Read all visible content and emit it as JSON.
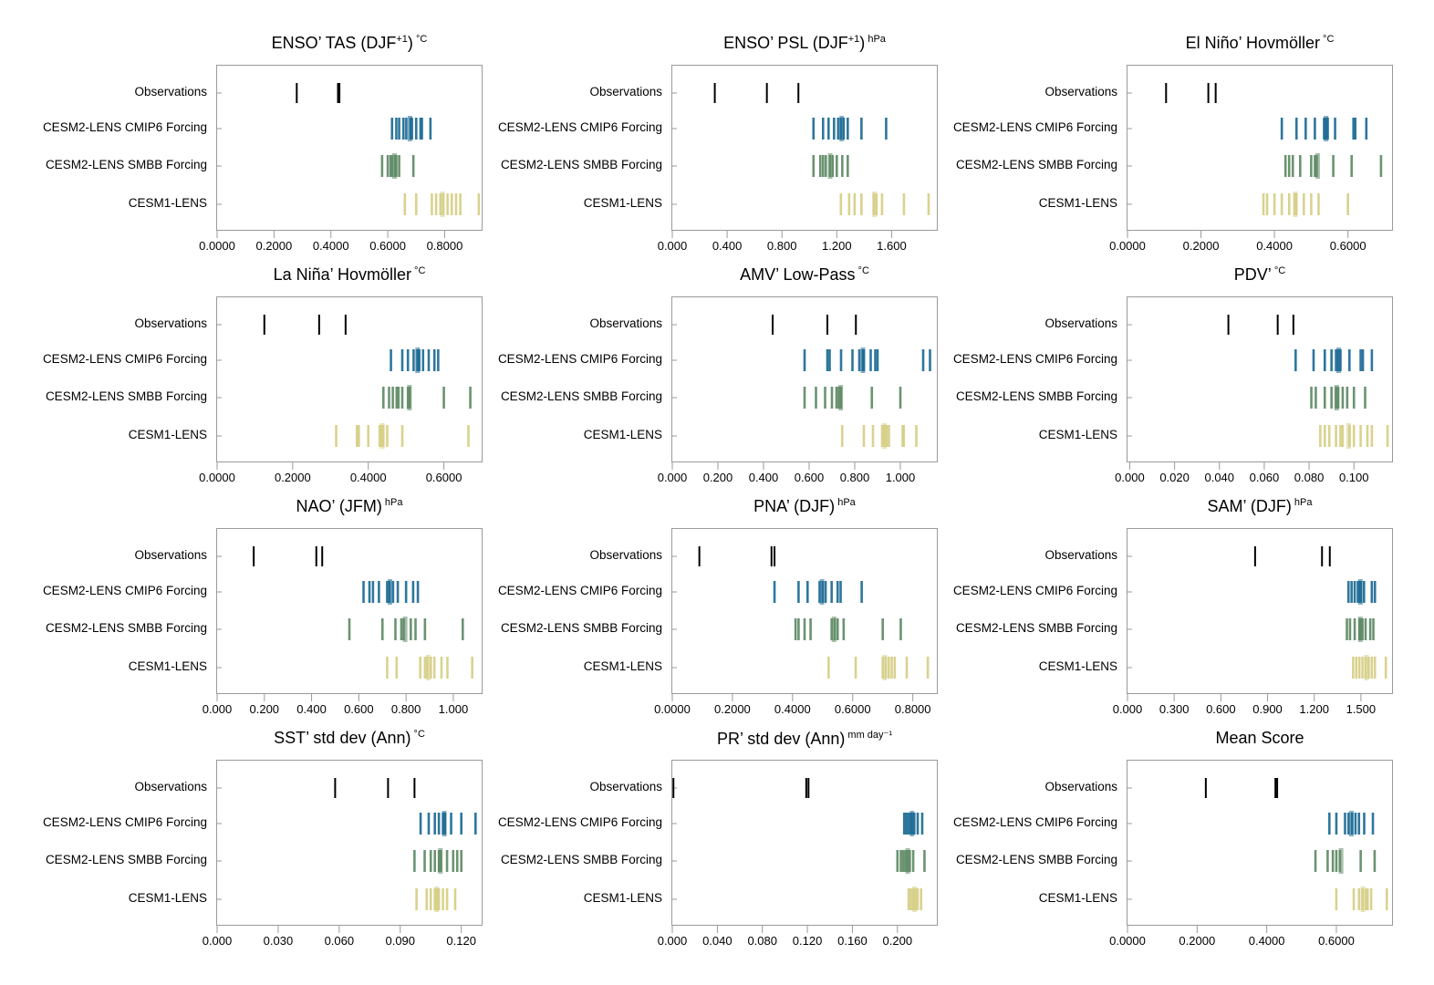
{
  "colors": {
    "Observations": "#000000",
    "CESM2-LENS CMIP6 Forcing": "#1d6b94",
    "CESM2-LENS SMBB Forcing": "#5f8a66",
    "CESM1-LENS": "#d6cf86"
  },
  "rows": [
    "Observations",
    "CESM2-LENS CMIP6 Forcing",
    "CESM2-LENS SMBB Forcing",
    "CESM1-LENS"
  ],
  "chart_data": [
    {
      "type": "scatter",
      "title": "ENSO’ TAS (DJF",
      "title_sup": "+1",
      "title_tail": ")",
      "unit": "°C",
      "xlim": [
        0,
        0.93
      ],
      "ticks": [
        "0.0000",
        "0.2000",
        "0.4000",
        "0.6000",
        "0.8000"
      ],
      "tick_values": [
        0,
        0.2,
        0.4,
        0.6,
        0.8
      ],
      "series": [
        {
          "name": "Observations",
          "values": [
            0.28,
            0.425,
            0.43
          ]
        },
        {
          "name": "CESM2-LENS CMIP6 Forcing",
          "values": [
            0.615,
            0.63,
            0.64,
            0.655,
            0.665,
            0.68,
            0.685,
            0.7,
            0.715,
            0.72,
            0.75
          ]
        },
        {
          "name": "CESM2-LENS SMBB Forcing",
          "values": [
            0.58,
            0.6,
            0.61,
            0.615,
            0.625,
            0.63,
            0.64,
            0.69
          ]
        },
        {
          "name": "CESM1-LENS",
          "values": [
            0.66,
            0.7,
            0.755,
            0.77,
            0.785,
            0.795,
            0.81,
            0.825,
            0.84,
            0.855,
            0.92
          ]
        }
      ]
    },
    {
      "type": "scatter",
      "title": "ENSO’ PSL (DJF",
      "title_sup": "+1",
      "title_tail": ")",
      "unit": "hPa",
      "xlim": [
        0,
        1.93
      ],
      "ticks": [
        "0.000",
        "0.400",
        "0.800",
        "1.200",
        "1.600"
      ],
      "tick_values": [
        0,
        0.4,
        0.8,
        1.2,
        1.6
      ],
      "series": [
        {
          "name": "Observations",
          "values": [
            0.31,
            0.69,
            0.92
          ]
        },
        {
          "name": "CESM2-LENS CMIP6 Forcing",
          "values": [
            1.03,
            1.1,
            1.14,
            1.18,
            1.21,
            1.23,
            1.25,
            1.28,
            1.38,
            1.56
          ]
        },
        {
          "name": "CESM2-LENS SMBB Forcing",
          "values": [
            1.03,
            1.08,
            1.1,
            1.12,
            1.15,
            1.17,
            1.2,
            1.24,
            1.28
          ]
        },
        {
          "name": "CESM1-LENS",
          "values": [
            1.23,
            1.29,
            1.33,
            1.38,
            1.47,
            1.49,
            1.53,
            1.69,
            1.87
          ]
        }
      ]
    },
    {
      "type": "scatter",
      "title": "El Niño’ Hovmöller",
      "title_sup": "",
      "title_tail": "",
      "unit": "°C",
      "xlim": [
        0,
        0.72
      ],
      "ticks": [
        "0.0000",
        "0.2000",
        "0.4000",
        "0.6000"
      ],
      "tick_values": [
        0,
        0.2,
        0.4,
        0.6
      ],
      "series": [
        {
          "name": "Observations",
          "values": [
            0.105,
            0.22,
            0.24
          ]
        },
        {
          "name": "CESM2-LENS CMIP6 Forcing",
          "values": [
            0.42,
            0.46,
            0.485,
            0.51,
            0.535,
            0.54,
            0.545,
            0.565,
            0.615,
            0.62,
            0.65
          ]
        },
        {
          "name": "CESM2-LENS SMBB Forcing",
          "values": [
            0.43,
            0.44,
            0.45,
            0.47,
            0.5,
            0.51,
            0.515,
            0.56,
            0.61,
            0.69
          ]
        },
        {
          "name": "CESM1-LENS",
          "values": [
            0.37,
            0.38,
            0.4,
            0.42,
            0.44,
            0.455,
            0.46,
            0.48,
            0.5,
            0.52,
            0.6
          ]
        }
      ]
    },
    {
      "type": "scatter",
      "title": "La Niña’ Hovmöller",
      "title_sup": "",
      "title_tail": "",
      "unit": "°C",
      "xlim": [
        0,
        0.7
      ],
      "ticks": [
        "0.0000",
        "0.2000",
        "0.4000",
        "0.6000"
      ],
      "tick_values": [
        0,
        0.2,
        0.4,
        0.6
      ],
      "series": [
        {
          "name": "Observations",
          "values": [
            0.125,
            0.27,
            0.34
          ]
        },
        {
          "name": "CESM2-LENS CMIP6 Forcing",
          "values": [
            0.46,
            0.49,
            0.505,
            0.52,
            0.53,
            0.535,
            0.545,
            0.56,
            0.575,
            0.585
          ]
        },
        {
          "name": "CESM2-LENS SMBB Forcing",
          "values": [
            0.44,
            0.455,
            0.465,
            0.475,
            0.48,
            0.49,
            0.505,
            0.51,
            0.6,
            0.67
          ]
        },
        {
          "name": "CESM1-LENS",
          "values": [
            0.315,
            0.37,
            0.375,
            0.4,
            0.43,
            0.435,
            0.44,
            0.45,
            0.49,
            0.665
          ]
        }
      ]
    },
    {
      "type": "scatter",
      "title": "AMV’ Low-Pass",
      "title_sup": "",
      "title_tail": "",
      "unit": "°C",
      "xlim": [
        0,
        1.16
      ],
      "ticks": [
        "0.000",
        "0.200",
        "0.400",
        "0.600",
        "0.800",
        "1.000"
      ],
      "tick_values": [
        0,
        0.2,
        0.4,
        0.6,
        0.8,
        1.0
      ],
      "series": [
        {
          "name": "Observations",
          "values": [
            0.44,
            0.68,
            0.805
          ]
        },
        {
          "name": "CESM2-LENS CMIP6 Forcing",
          "values": [
            0.58,
            0.68,
            0.69,
            0.74,
            0.79,
            0.82,
            0.835,
            0.84,
            0.87,
            0.89,
            0.9,
            1.1,
            1.13
          ]
        },
        {
          "name": "CESM2-LENS SMBB Forcing",
          "values": [
            0.58,
            0.63,
            0.67,
            0.7,
            0.72,
            0.73,
            0.74,
            0.875,
            1.0
          ]
        },
        {
          "name": "CESM1-LENS",
          "values": [
            0.745,
            0.84,
            0.88,
            0.92,
            0.93,
            0.94,
            0.95,
            1.01,
            1.015,
            1.07
          ]
        }
      ]
    },
    {
      "type": "scatter",
      "title": "PDV’",
      "title_sup": "",
      "title_tail": "",
      "unit": "°C",
      "xlim": [
        -0.001,
        0.117
      ],
      "ticks": [
        "0.000",
        "0.020",
        "0.040",
        "0.060",
        "0.080",
        "0.100"
      ],
      "tick_values": [
        0,
        0.02,
        0.04,
        0.06,
        0.08,
        0.1
      ],
      "series": [
        {
          "name": "Observations",
          "values": [
            0.044,
            0.066,
            0.073
          ]
        },
        {
          "name": "CESM2-LENS CMIP6 Forcing",
          "values": [
            0.074,
            0.082,
            0.087,
            0.09,
            0.092,
            0.093,
            0.094,
            0.098,
            0.103,
            0.104,
            0.108
          ]
        },
        {
          "name": "CESM2-LENS SMBB Forcing",
          "values": [
            0.081,
            0.083,
            0.087,
            0.09,
            0.092,
            0.093,
            0.095,
            0.097,
            0.1,
            0.105
          ]
        },
        {
          "name": "CESM1-LENS",
          "values": [
            0.085,
            0.087,
            0.089,
            0.092,
            0.094,
            0.095,
            0.098,
            0.1,
            0.103,
            0.106,
            0.108,
            0.115
          ]
        }
      ]
    },
    {
      "type": "scatter",
      "title": "NAO’ (JFM)",
      "title_sup": "",
      "title_tail": "",
      "unit": "hPa",
      "xlim": [
        0,
        1.12
      ],
      "ticks": [
        "0.000",
        "0.200",
        "0.400",
        "0.600",
        "0.800",
        "1.000"
      ],
      "tick_values": [
        0,
        0.2,
        0.4,
        0.6,
        0.8,
        1.0
      ],
      "series": [
        {
          "name": "Observations",
          "values": [
            0.155,
            0.42,
            0.445
          ]
        },
        {
          "name": "CESM2-LENS CMIP6 Forcing",
          "values": [
            0.62,
            0.645,
            0.66,
            0.685,
            0.72,
            0.73,
            0.745,
            0.765,
            0.8,
            0.83,
            0.85
          ]
        },
        {
          "name": "CESM2-LENS SMBB Forcing",
          "values": [
            0.56,
            0.7,
            0.755,
            0.78,
            0.79,
            0.82,
            0.84,
            0.88,
            1.04
          ]
        },
        {
          "name": "CESM1-LENS",
          "values": [
            0.72,
            0.76,
            0.86,
            0.88,
            0.89,
            0.905,
            0.92,
            0.95,
            0.975,
            1.08
          ]
        }
      ]
    },
    {
      "type": "scatter",
      "title": "PNA’ (DJF)",
      "title_sup": "",
      "title_tail": "",
      "unit": "hPa",
      "xlim": [
        0,
        0.88
      ],
      "ticks": [
        "0.0000",
        "0.2000",
        "0.4000",
        "0.6000",
        "0.8000"
      ],
      "tick_values": [
        0,
        0.2,
        0.4,
        0.6,
        0.8
      ],
      "series": [
        {
          "name": "Observations",
          "values": [
            0.09,
            0.33,
            0.34
          ]
        },
        {
          "name": "CESM2-LENS CMIP6 Forcing",
          "values": [
            0.34,
            0.42,
            0.45,
            0.49,
            0.5,
            0.51,
            0.53,
            0.55,
            0.56,
            0.63
          ]
        },
        {
          "name": "CESM2-LENS SMBB Forcing",
          "values": [
            0.41,
            0.42,
            0.44,
            0.46,
            0.53,
            0.54,
            0.55,
            0.57,
            0.7,
            0.76
          ]
        },
        {
          "name": "CESM1-LENS",
          "values": [
            0.52,
            0.61,
            0.7,
            0.71,
            0.72,
            0.73,
            0.74,
            0.78,
            0.85
          ]
        }
      ]
    },
    {
      "type": "scatter",
      "title": "SAM’ (DJF)",
      "title_sup": "",
      "title_tail": "",
      "unit": "hPa",
      "xlim": [
        0,
        1.7
      ],
      "ticks": [
        "0.000",
        "0.300",
        "0.600",
        "0.900",
        "1.200",
        "1.500"
      ],
      "tick_values": [
        0,
        0.3,
        0.6,
        0.9,
        1.2,
        1.5
      ],
      "series": [
        {
          "name": "Observations",
          "values": [
            0.82,
            1.25,
            1.3
          ]
        },
        {
          "name": "CESM2-LENS CMIP6 Forcing",
          "values": [
            1.42,
            1.44,
            1.46,
            1.48,
            1.49,
            1.5,
            1.52,
            1.57,
            1.59
          ]
        },
        {
          "name": "CESM2-LENS SMBB Forcing",
          "values": [
            1.41,
            1.43,
            1.46,
            1.49,
            1.5,
            1.51,
            1.53,
            1.56,
            1.58
          ]
        },
        {
          "name": "CESM1-LENS",
          "values": [
            1.45,
            1.47,
            1.49,
            1.51,
            1.53,
            1.55,
            1.57,
            1.59,
            1.66
          ]
        }
      ]
    },
    {
      "type": "scatter",
      "title": "SST’ std dev (Ann)",
      "title_sup": "",
      "title_tail": "",
      "unit": "°C",
      "xlim": [
        0,
        0.13
      ],
      "ticks": [
        "0.000",
        "0.030",
        "0.060",
        "0.090",
        "0.120"
      ],
      "tick_values": [
        0,
        0.03,
        0.06,
        0.09,
        0.12
      ],
      "series": [
        {
          "name": "Observations",
          "values": [
            0.058,
            0.084,
            0.097
          ]
        },
        {
          "name": "CESM2-LENS CMIP6 Forcing",
          "values": [
            0.1,
            0.104,
            0.107,
            0.109,
            0.111,
            0.112,
            0.115,
            0.12,
            0.127
          ]
        },
        {
          "name": "CESM2-LENS SMBB Forcing",
          "values": [
            0.097,
            0.102,
            0.105,
            0.107,
            0.109,
            0.11,
            0.113,
            0.116,
            0.118,
            0.12
          ]
        },
        {
          "name": "CESM1-LENS",
          "values": [
            0.098,
            0.103,
            0.105,
            0.107,
            0.108,
            0.109,
            0.111,
            0.113,
            0.117
          ]
        }
      ]
    },
    {
      "type": "scatter",
      "title": "PR’ std dev (Ann)",
      "title_sup": "",
      "title_tail": "",
      "unit": "mm day⁻¹",
      "xlim": [
        0,
        0.235
      ],
      "ticks": [
        "0.000",
        "0.040",
        "0.080",
        "0.120",
        "0.160",
        "0.200"
      ],
      "tick_values": [
        0,
        0.04,
        0.08,
        0.12,
        0.16,
        0.2
      ],
      "series": [
        {
          "name": "Observations",
          "values": [
            0.001,
            0.119,
            0.121
          ]
        },
        {
          "name": "CESM2-LENS CMIP6 Forcing",
          "values": [
            0.206,
            0.208,
            0.21,
            0.212,
            0.213,
            0.215,
            0.218,
            0.222
          ]
        },
        {
          "name": "CESM2-LENS SMBB Forcing",
          "values": [
            0.2,
            0.203,
            0.205,
            0.207,
            0.209,
            0.211,
            0.214,
            0.224
          ]
        },
        {
          "name": "CESM1-LENS",
          "values": [
            0.21,
            0.212,
            0.214,
            0.216,
            0.218,
            0.221
          ]
        }
      ]
    },
    {
      "type": "scatter",
      "title": "Mean Score",
      "title_sup": "",
      "title_tail": "",
      "unit": "",
      "xlim": [
        0,
        0.76
      ],
      "ticks": [
        "0.0000",
        "0.2000",
        "0.4000",
        "0.6000"
      ],
      "tick_values": [
        0,
        0.2,
        0.4,
        0.6
      ],
      "series": [
        {
          "name": "Observations",
          "values": [
            0.225,
            0.425,
            0.43
          ]
        },
        {
          "name": "CESM2-LENS CMIP6 Forcing",
          "values": [
            0.58,
            0.6,
            0.625,
            0.635,
            0.645,
            0.655,
            0.665,
            0.68,
            0.705
          ]
        },
        {
          "name": "CESM2-LENS SMBB Forcing",
          "values": [
            0.54,
            0.575,
            0.59,
            0.6,
            0.61,
            0.67,
            0.71
          ]
        },
        {
          "name": "CESM1-LENS",
          "values": [
            0.6,
            0.65,
            0.665,
            0.675,
            0.685,
            0.69,
            0.7,
            0.745
          ]
        }
      ]
    }
  ]
}
